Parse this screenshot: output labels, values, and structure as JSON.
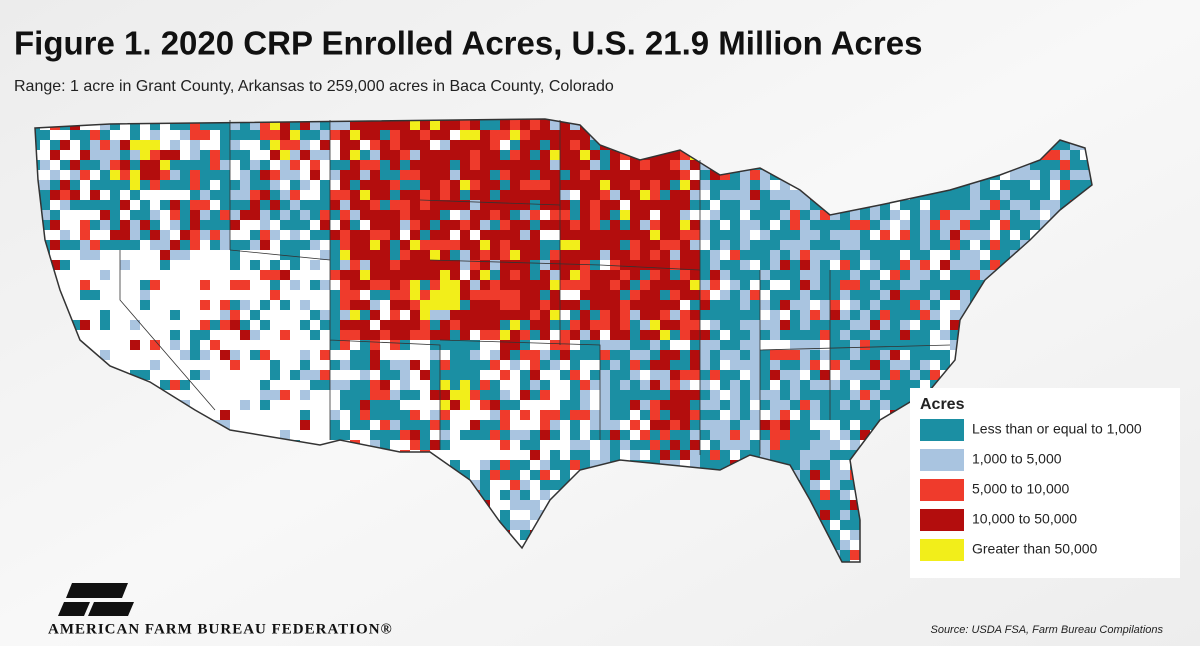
{
  "header": {
    "title": "Figure 1. 2020 CRP Enrolled Acres, U.S. 21.9 Million Acres",
    "subtitle": "Range: 1 acre in Grant County, Arkansas to 259,000 acres in Baca County, Colorado"
  },
  "legend": {
    "title": "Acres",
    "items": [
      {
        "label": "Less than or equal to 1,000",
        "color": "#1b8fa3"
      },
      {
        "label": "1,000 to 5,000",
        "color": "#a9c4e0"
      },
      {
        "label": "5,000 to 10,000",
        "color": "#ef3b2c"
      },
      {
        "label": "10,000 to 50,000",
        "color": "#b30d0d"
      },
      {
        "label": "Greater than 50,000",
        "color": "#f2ee1a"
      }
    ]
  },
  "footer": {
    "organization": "AMERICAN FARM BUREAU FEDERATION®",
    "source": "Source: USDA FSA, Farm Bureau Compilations"
  }
}
